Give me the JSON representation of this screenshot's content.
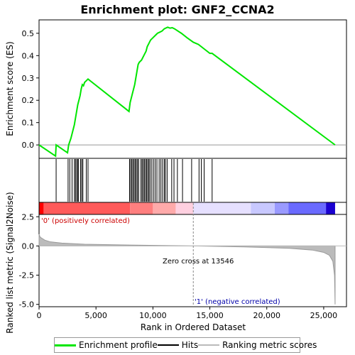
{
  "chart_data": {
    "type": "line",
    "title": "Enrichment plot: GNF2_CCNA2",
    "es_panel": {
      "ylabel": "Enrichment score (ES)",
      "ylim": [
        -0.06,
        0.56
      ],
      "yticks": [
        0.0,
        0.1,
        0.2,
        0.3,
        0.4,
        0.5
      ],
      "series": [
        {
          "name": "Enrichment profile",
          "color": "#00e600",
          "x": [
            0,
            1450,
            1500,
            2500,
            2600,
            2800,
            2950,
            3100,
            3200,
            3300,
            3400,
            3500,
            3600,
            3700,
            3800,
            3900,
            4000,
            4200,
            4300,
            7900,
            8000,
            8100,
            8200,
            8300,
            8400,
            8500,
            8600,
            8700,
            8800,
            9000,
            9200,
            9400,
            9500,
            9700,
            9800,
            10000,
            10200,
            10400,
            10600,
            10800,
            11000,
            11200,
            11300,
            11500,
            11700,
            11900,
            12500,
            13000,
            13546,
            14000,
            14500,
            15000,
            15200,
            26000
          ],
          "y": [
            0.0,
            -0.05,
            0.0,
            -0.035,
            0.0,
            0.03,
            0.06,
            0.09,
            0.12,
            0.15,
            0.18,
            0.2,
            0.22,
            0.25,
            0.27,
            0.265,
            0.28,
            0.29,
            0.295,
            0.15,
            0.19,
            0.21,
            0.23,
            0.25,
            0.27,
            0.3,
            0.33,
            0.36,
            0.37,
            0.38,
            0.4,
            0.42,
            0.44,
            0.46,
            0.47,
            0.48,
            0.49,
            0.5,
            0.505,
            0.51,
            0.52,
            0.525,
            0.527,
            0.523,
            0.525,
            0.52,
            0.5,
            0.48,
            0.46,
            0.45,
            0.43,
            0.41,
            0.41,
            0.0
          ]
        }
      ]
    },
    "hits": [
      1500,
      2550,
      2700,
      2900,
      3100,
      3200,
      3300,
      3400,
      3450,
      3650,
      3750,
      3850,
      4150,
      4300,
      7950,
      8050,
      8150,
      8250,
      8350,
      8450,
      8550,
      8650,
      8750,
      8950,
      9050,
      9150,
      9250,
      9350,
      9450,
      9550,
      9650,
      9750,
      9900,
      10050,
      10200,
      10350,
      10550,
      10700,
      10850,
      11000,
      11100,
      11250,
      11650,
      11850,
      12150,
      12600,
      13400,
      14050,
      14250,
      14500,
      15200
    ],
    "metric_panel": {
      "ylabel": "Ranked list metric (Signal2Noise)",
      "ylim": [
        -5.2,
        2.7
      ],
      "yticks": [
        2.5,
        0.0,
        -2.5,
        -5.0
      ],
      "ytick_labels": [
        "2.5",
        "0.0",
        "-2.5",
        "-5.0"
      ],
      "xlabel": "Rank in Ordered Dataset",
      "xlim": [
        0,
        27000
      ],
      "xticks": [
        0,
        5000,
        10000,
        15000,
        20000,
        25000
      ],
      "xtick_labels": [
        "0",
        "5,000",
        "10,000",
        "15,000",
        "20,000",
        "25,000"
      ],
      "zero_cross_label": "Zero cross at 13546",
      "zero_cross_rank": 13546,
      "pos_label": "'0' (positively correlated)",
      "neg_label": "'1' (negative correlated)",
      "profile": {
        "x": [
          0,
          100,
          500,
          1000,
          2000,
          4000,
          8000,
          13546,
          18000,
          22000,
          24000,
          25000,
          25500,
          25800,
          25950,
          26000
        ],
        "y": [
          1.0,
          0.75,
          0.5,
          0.35,
          0.25,
          0.15,
          0.08,
          0.0,
          -0.08,
          -0.2,
          -0.35,
          -0.55,
          -0.8,
          -1.3,
          -2.5,
          -5.0
        ]
      }
    },
    "color_bar": {
      "stops": [
        {
          "x": 0,
          "color": "#ff0000"
        },
        {
          "x": 400,
          "color": "#ff5a5a"
        },
        {
          "x": 8000,
          "color": "#ff7f7f"
        },
        {
          "x": 10000,
          "color": "#ffaaaa"
        },
        {
          "x": 12000,
          "color": "#ffd0e0"
        },
        {
          "x": 13546,
          "color": "#e6e0ff"
        },
        {
          "x": 18600,
          "color": "#c8c8ff"
        },
        {
          "x": 20700,
          "color": "#9a9aff"
        },
        {
          "x": 21900,
          "color": "#6a6aff"
        },
        {
          "x": 25200,
          "color": "#1a00d0"
        },
        {
          "x": 26000,
          "color": "#1a00d0"
        }
      ]
    },
    "legend": {
      "entries": [
        "Enrichment profile",
        "Hits",
        "Ranking metric scores"
      ],
      "colors": [
        "#00e600",
        "#000000",
        "#bbbbbb"
      ]
    }
  }
}
